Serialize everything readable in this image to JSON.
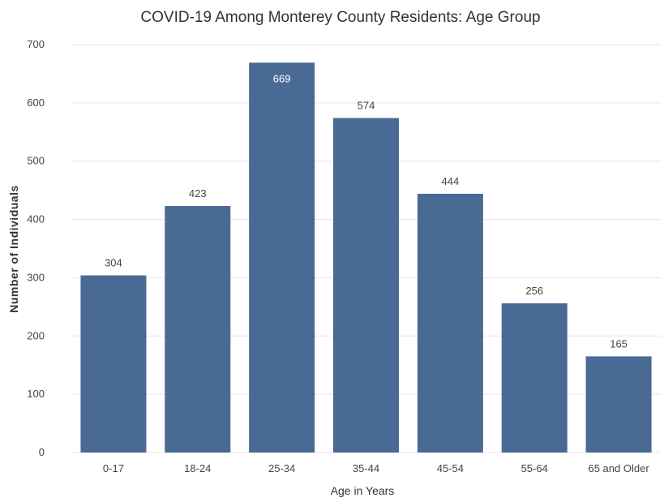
{
  "chart_data": {
    "type": "bar",
    "title": "COVID-19 Among Monterey County Residents: Age Group",
    "xlabel": "Age in Years",
    "ylabel": "Number of Individuals",
    "categories": [
      "0-17",
      "18-24",
      "25-34",
      "35-44",
      "45-54",
      "55-64",
      "65 and Older"
    ],
    "values": [
      304,
      423,
      669,
      574,
      444,
      256,
      165
    ],
    "data_labels": [
      "304",
      "423",
      "669",
      "574",
      "444",
      "256",
      "165"
    ],
    "ylim": [
      0,
      700
    ],
    "yticks": [
      "0",
      "100",
      "200",
      "300",
      "400",
      "500",
      "600",
      "700"
    ],
    "grid": true,
    "legend": "none",
    "bar_color": "#4a6a96"
  }
}
